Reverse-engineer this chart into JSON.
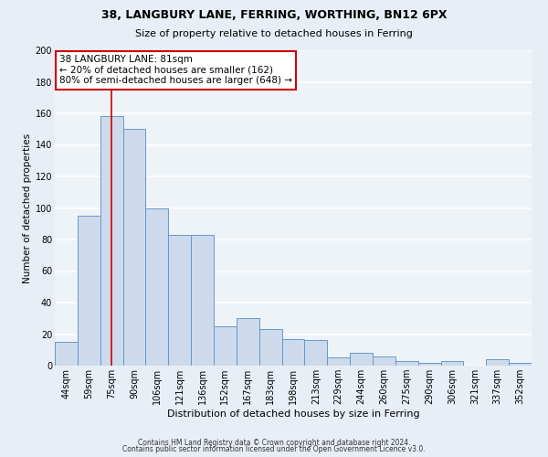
{
  "title": "38, LANGBURY LANE, FERRING, WORTHING, BN12 6PX",
  "subtitle": "Size of property relative to detached houses in Ferring",
  "xlabel": "Distribution of detached houses by size in Ferring",
  "ylabel": "Number of detached properties",
  "bar_labels": [
    "44sqm",
    "59sqm",
    "75sqm",
    "90sqm",
    "106sqm",
    "121sqm",
    "136sqm",
    "152sqm",
    "167sqm",
    "183sqm",
    "198sqm",
    "213sqm",
    "229sqm",
    "244sqm",
    "260sqm",
    "275sqm",
    "290sqm",
    "306sqm",
    "321sqm",
    "337sqm",
    "352sqm"
  ],
  "bar_values": [
    15,
    95,
    158,
    150,
    100,
    83,
    83,
    25,
    30,
    23,
    17,
    16,
    5,
    8,
    6,
    3,
    2,
    3,
    0,
    4,
    2
  ],
  "bar_color": "#ccdaeb",
  "bar_edge_color": "#6699cc",
  "vline_x_index": 2,
  "vline_color": "#cc0000",
  "annotation_title": "38 LANGBURY LANE: 81sqm",
  "annotation_line1": "← 20% of detached houses are smaller (162)",
  "annotation_line2": "80% of semi-detached houses are larger (648) →",
  "annotation_box_edgecolor": "#cc0000",
  "annotation_box_facecolor": "#ffffff",
  "ylim": [
    0,
    200
  ],
  "yticks": [
    0,
    20,
    40,
    60,
    80,
    100,
    120,
    140,
    160,
    180,
    200
  ],
  "footnote1": "Contains HM Land Registry data © Crown copyright and database right 2024.",
  "footnote2": "Contains public sector information licensed under the Open Government Licence v3.0.",
  "fig_bg_color": "#e8eef5",
  "plot_bg_color": "#eef3f8",
  "grid_color": "#ffffff",
  "title_fontsize": 9,
  "subtitle_fontsize": 8,
  "xlabel_fontsize": 8,
  "ylabel_fontsize": 7.5,
  "tick_fontsize": 7,
  "annotation_fontsize": 7.5,
  "footnote_fontsize": 5.5
}
